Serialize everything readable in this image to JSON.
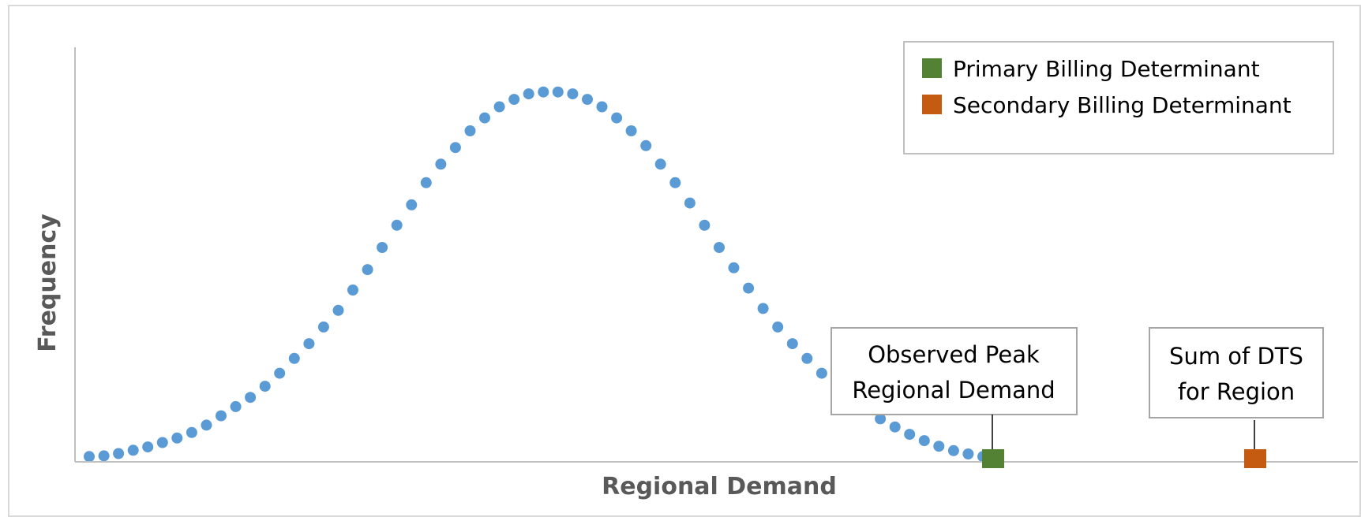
{
  "chart_data": {
    "type": "scatter",
    "title": "",
    "xlabel": "Regional Demand",
    "ylabel": "Frequency",
    "grid": false,
    "legend_position": "top-right",
    "xlim": [
      0,
      80
    ],
    "ylim": [
      0,
      1.12
    ],
    "colors": {
      "distribution": "#5b9bd5",
      "primary": "#548235",
      "secondary": "#c55a11",
      "axis": "#bfbfbf",
      "frame": "#d9d9d9",
      "box_border": "#a6a6a6"
    },
    "series": [
      {
        "type": "dotted-curve",
        "x": [
          1,
          2,
          3,
          4,
          5,
          6,
          7,
          8,
          9,
          10,
          11,
          12,
          13,
          14,
          15,
          16,
          17,
          18,
          19,
          20,
          21,
          22,
          23,
          24,
          25,
          26,
          27,
          28,
          29,
          30,
          31,
          32,
          33,
          34,
          35,
          36,
          37,
          38,
          39,
          40,
          41,
          42,
          43,
          44,
          45,
          46,
          47,
          48,
          49,
          50,
          51,
          52,
          53,
          54,
          55,
          56,
          57,
          58,
          59,
          60,
          61,
          62
        ],
        "values": [
          0.01,
          0.012,
          0.018,
          0.027,
          0.036,
          0.048,
          0.06,
          0.075,
          0.095,
          0.12,
          0.145,
          0.17,
          0.2,
          0.235,
          0.275,
          0.315,
          0.36,
          0.405,
          0.46,
          0.515,
          0.575,
          0.635,
          0.69,
          0.75,
          0.8,
          0.845,
          0.89,
          0.925,
          0.955,
          0.975,
          0.99,
          0.995,
          0.995,
          0.99,
          0.975,
          0.955,
          0.925,
          0.89,
          0.85,
          0.8,
          0.75,
          0.695,
          0.635,
          0.575,
          0.52,
          0.465,
          0.41,
          0.36,
          0.315,
          0.275,
          0.235,
          0.2,
          0.165,
          0.138,
          0.112,
          0.09,
          0.07,
          0.053,
          0.038,
          0.026,
          0.017,
          0.01
        ]
      },
      {
        "name": "Primary Billing Determinant",
        "type": "marker",
        "x": [
          62.5
        ],
        "values": [
          0.015
        ]
      },
      {
        "name": "Secondary Billing Determinant",
        "type": "marker",
        "x": [
          80
        ],
        "values": [
          0.015
        ]
      }
    ],
    "legend": [
      {
        "label": "Primary Billing Determinant",
        "color": "#548235"
      },
      {
        "label": "Secondary Billing Determinant",
        "color": "#c55a11"
      }
    ],
    "annotations": [
      {
        "lines": [
          "Observed Peak",
          "Regional Demand"
        ],
        "x": 62.5,
        "series": "Primary Billing Determinant"
      },
      {
        "lines": [
          "Sum of DTS",
          "for Region"
        ],
        "x": 80,
        "series": "Secondary Billing Determinant"
      }
    ]
  }
}
